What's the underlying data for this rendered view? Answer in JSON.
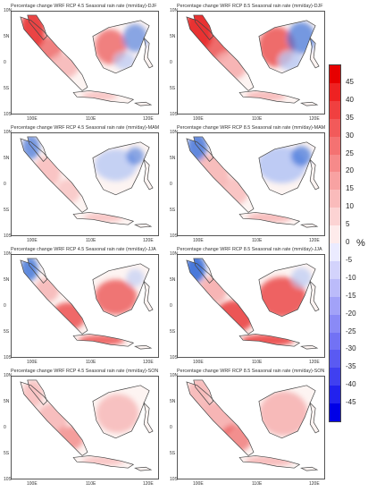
{
  "panels": [
    {
      "title": "Percentage change WRF RCP 4.5 Seasonal rain rate (mm/day)-DJF",
      "season": "DJF",
      "scenario": "RCP 4.5"
    },
    {
      "title": "Percentage change WRF RCP 8.5 Seasonal rain rate (mm/day)-DJF",
      "season": "DJF",
      "scenario": "RCP 8.5"
    },
    {
      "title": "Percentage change WRF RCP 4.5 Seasonal rain rate (mm/day)-MAM",
      "season": "MAM",
      "scenario": "RCP 4.5"
    },
    {
      "title": "Percentage change WRF RCP 8.5 Seasonal rain rate (mm/day)-MAM",
      "season": "MAM",
      "scenario": "RCP 8.5"
    },
    {
      "title": "Percentage change WRF RCP 4.5 Seasonal rain rate (mm/day)-JJA",
      "season": "JJA",
      "scenario": "RCP 4.5"
    },
    {
      "title": "Percentage change WRF RCP 8.5 Seasonal rain rate (mm/day)-JJA",
      "season": "JJA",
      "scenario": "RCP 8.5"
    },
    {
      "title": "Percentage change WRF RCP 4.5 Seasonal rain rate (mm/day)-SON",
      "season": "SON",
      "scenario": "RCP 4.5"
    },
    {
      "title": "Percentage change WRF RCP 8.5 Seasonal rain rate (mm/day)-SON",
      "season": "SON",
      "scenario": "RCP 8.5"
    }
  ],
  "lat_labels": [
    "10N",
    "5N",
    "0",
    "5S",
    "10S"
  ],
  "lon_labels": [
    "100E",
    "110E",
    "120E"
  ],
  "colorbar": {
    "unit": "%",
    "ticks": [
      "45",
      "40",
      "35",
      "30",
      "25",
      "20",
      "15",
      "10",
      "5",
      "0",
      "-5",
      "-10",
      "-15",
      "-20",
      "-25",
      "-30",
      "-35",
      "-40",
      "-45"
    ],
    "colors": [
      "#e60000",
      "#ee2222",
      "#f04040",
      "#f25a5a",
      "#f47272",
      "#f68a8a",
      "#f8a2a2",
      "#fabbbb",
      "#fcd3d3",
      "#feebeb",
      "#ebebff",
      "#d3d3fc",
      "#bbbbfa",
      "#a2a2f8",
      "#8a8af6",
      "#7272f4",
      "#5a5af2",
      "#4040f0",
      "#2222ee",
      "#0000e6"
    ]
  },
  "color_scale": {
    "positive": "#e83030",
    "weak_positive": "#f6b0b0",
    "neutral": "#fdf4f2",
    "weak_negative": "#b8c8f4",
    "negative": "#3a6fd8"
  }
}
